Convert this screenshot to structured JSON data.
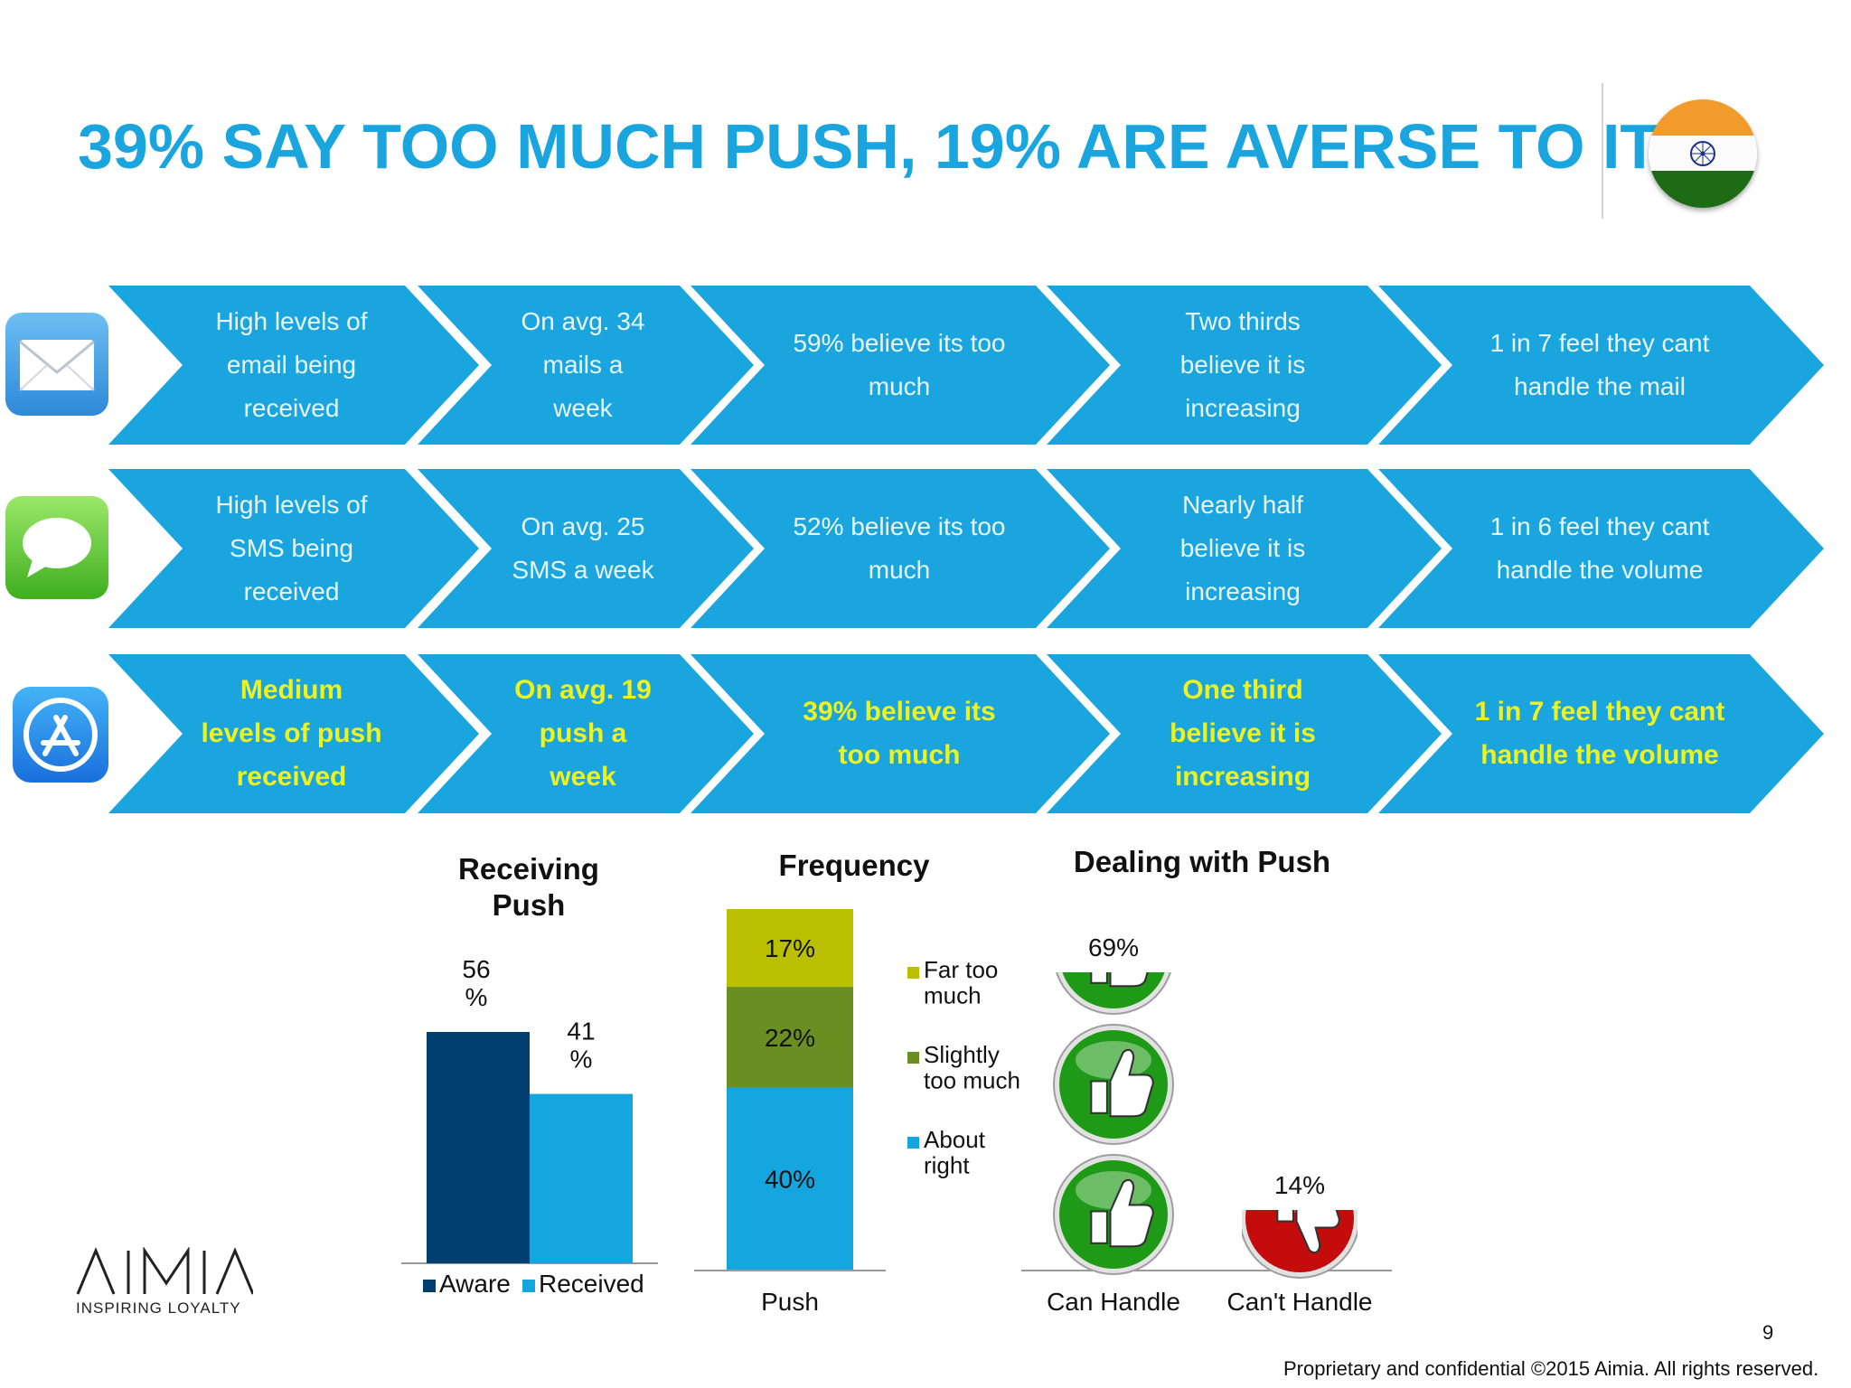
{
  "slide": {
    "title": "39% SAY TOO MUCH PUSH, 19% ARE AVERSE TO IT",
    "flag_icon": "india-flag-icon",
    "page_number": "9",
    "copyright": "Proprietary and confidential ©2015 Aimia. All rights reserved.",
    "logo_text": "AIMIA",
    "logo_tagline": "INSPIRING LOYALTY"
  },
  "colors": {
    "accent": "#1aa5df",
    "highlight_text": "#eef21f",
    "aware": "#003f6f",
    "received": "#16a6df",
    "far_too_much": "#bac000",
    "slightly_too_much": "#6a8e21",
    "about_right": "#16a6df",
    "thumb_green": "#1f9a16",
    "thumb_red": "#c40c0c"
  },
  "rows": [
    {
      "icon": "mail-icon",
      "cells": [
        "High levels of\nemail being\nreceived",
        "On avg. 34\nmails a\nweek",
        "59% believe its too\nmuch",
        "Two thirds\nbelieve it is\nincreasing",
        "1 in 7 feel they cant\nhandle the mail"
      ]
    },
    {
      "icon": "sms-icon",
      "cells": [
        "High levels of\nSMS being\nreceived",
        "On avg. 25\nSMS a week",
        "52% believe its too\nmuch",
        "Nearly half\nbelieve it is\nincreasing",
        "1 in 6 feel they cant\nhandle the volume"
      ]
    },
    {
      "icon": "app-store-icon",
      "cells": [
        "Medium\nlevels of push\nreceived",
        "On avg. 19\npush a\nweek",
        "39% believe its\ntoo much",
        "One third\nbelieve it is\nincreasing",
        "1 in 7 feel they cant\nhandle the volume"
      ]
    }
  ],
  "chart_data": [
    {
      "type": "bar",
      "title": "Receiving Push",
      "categories": [
        "Aware",
        "Received"
      ],
      "values": [
        56,
        41
      ],
      "data_labels": [
        "56\n%",
        "41\n%"
      ],
      "legend": [
        "Aware",
        "Received"
      ],
      "legend_position": "bottom",
      "grid": false,
      "ylim": [
        0,
        100
      ]
    },
    {
      "type": "bar",
      "stacked": true,
      "title": "Frequency",
      "categories": [
        "Push"
      ],
      "series": [
        {
          "name": "About right",
          "values": [
            40
          ],
          "label": "40%"
        },
        {
          "name": "Slightly too much",
          "values": [
            22
          ],
          "label": "22%"
        },
        {
          "name": "Far too much",
          "values": [
            17
          ],
          "label": "17%"
        }
      ],
      "legend": [
        "Far too\nmuch",
        "Slightly\ntoo much",
        "About\nright"
      ],
      "legend_position": "right",
      "grid": false,
      "ylim": [
        0,
        79
      ]
    },
    {
      "type": "bar",
      "title": "Dealing with Push",
      "categories": [
        "Can Handle",
        "Can't Handle"
      ],
      "values": [
        69,
        14
      ],
      "data_labels": [
        "69%",
        "14%"
      ],
      "markers": [
        "thumbs-up-icon",
        "thumbs-down-icon"
      ],
      "grid": false,
      "ylim": [
        0,
        69
      ]
    }
  ]
}
